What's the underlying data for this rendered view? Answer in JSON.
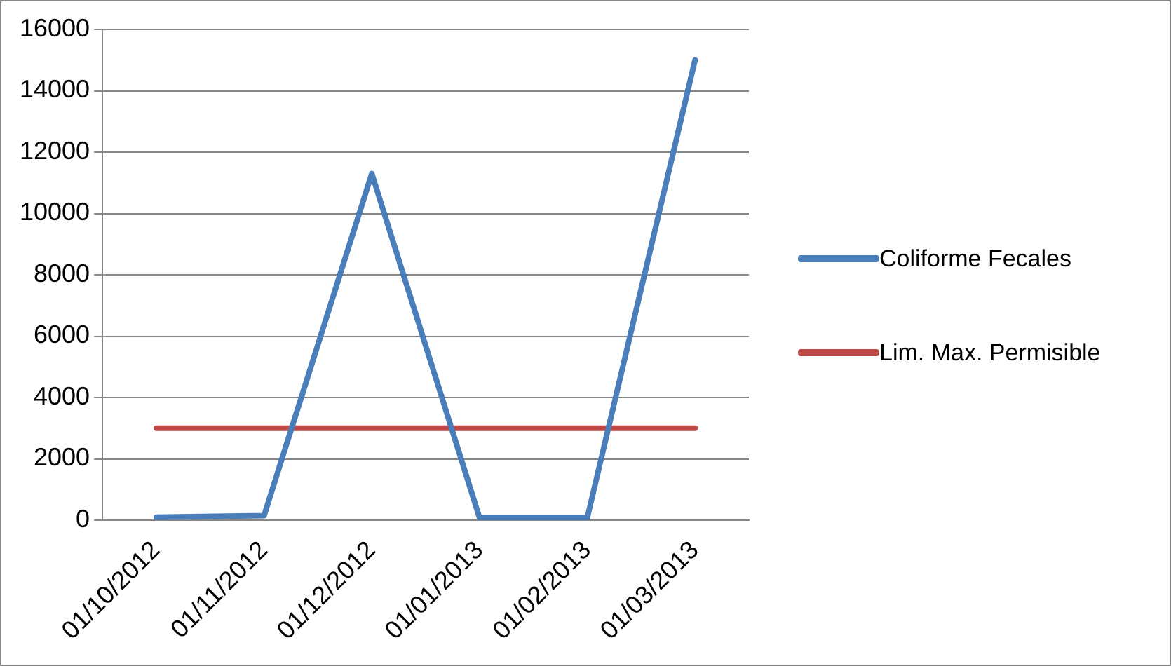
{
  "chart_data": {
    "type": "line",
    "categories": [
      "01/10/2012",
      "01/11/2012",
      "01/12/2012",
      "01/01/2013",
      "01/02/2013",
      "01/03/2013"
    ],
    "series": [
      {
        "name": "Coliforme Fecales",
        "color": "#4a7ebb",
        "values": [
          100,
          150,
          11300,
          80,
          80,
          15000
        ]
      },
      {
        "name": "Lim. Max. Permisible",
        "color": "#be4b48",
        "values": [
          3000,
          3000,
          3000,
          3000,
          3000,
          3000
        ]
      }
    ],
    "ylim": [
      0,
      16000
    ],
    "yticks": [
      0,
      2000,
      4000,
      6000,
      8000,
      10000,
      12000,
      14000,
      16000
    ],
    "grid": "y",
    "legend": "right",
    "marker": "none",
    "line_style": "solid"
  }
}
